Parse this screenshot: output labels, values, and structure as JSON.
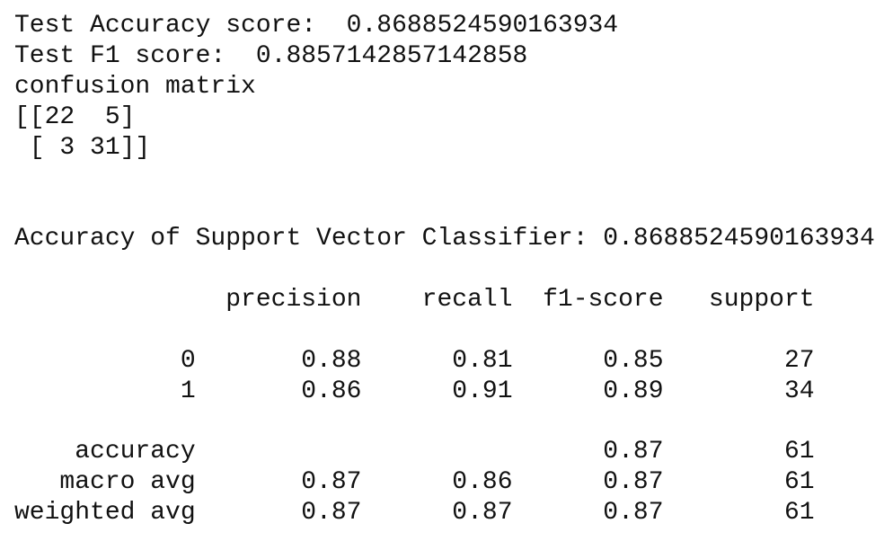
{
  "output": {
    "lines": [
      "Test Accuracy score:  0.8688524590163934",
      "Test F1 score:  0.8857142857142858",
      "confusion matrix",
      "[[22  5]",
      " [ 3 31]]",
      "",
      "",
      "Accuracy of Support Vector Classifier: 0.8688524590163934",
      "",
      "              precision    recall  f1-score   support",
      "",
      "           0       0.88      0.81      0.85        27",
      "           1       0.86      0.91      0.89        34",
      "",
      "    accuracy                           0.87        61",
      "   macro avg       0.87      0.86      0.87        61",
      "weighted avg       0.87      0.87      0.87        61"
    ]
  }
}
